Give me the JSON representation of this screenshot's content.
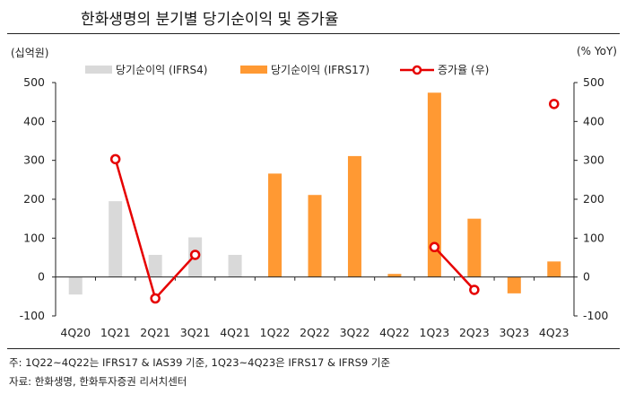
{
  "title": "한화생명의 분기별 당기순이익 및 증가율",
  "footnote": "주: 1Q22~4Q22는 IFRS17 & IAS39 기준, 1Q23~4Q23은 IFRS17 & IFRS9 기준",
  "source": "자료: 한화생명, 한화투자증권 리서치센터",
  "chart_data": {
    "type": "bar+line",
    "ylabel_left": "(십억원)",
    "ylabel_right": "(% YoY)",
    "ylim_left": [
      -100,
      500
    ],
    "ylim_right": [
      -100,
      500
    ],
    "yticks": [
      -100,
      0,
      100,
      200,
      300,
      400,
      500
    ],
    "legend_position": "top",
    "categories": [
      "4Q20",
      "1Q21",
      "2Q21",
      "3Q21",
      "4Q21",
      "1Q22",
      "2Q22",
      "3Q22",
      "4Q22",
      "1Q23",
      "2Q23",
      "3Q23",
      "4Q23"
    ],
    "series": [
      {
        "name": "당기순이익 (IFRS4)",
        "type": "bar",
        "axis": "left",
        "color": "#d9d9d9",
        "values": [
          -45,
          195,
          57,
          102,
          57,
          null,
          null,
          null,
          null,
          null,
          null,
          null,
          null
        ]
      },
      {
        "name": "당기순이익 (IFRS17)",
        "type": "bar",
        "axis": "left",
        "color": "#ff9933",
        "values": [
          null,
          null,
          null,
          null,
          null,
          266,
          211,
          311,
          8,
          474,
          150,
          -42,
          40
        ]
      },
      {
        "name": "증가율 (우)",
        "type": "line",
        "axis": "right",
        "color": "#e60000",
        "values": [
          null,
          303,
          -55,
          57,
          null,
          null,
          null,
          null,
          null,
          77,
          -33,
          null,
          445
        ]
      }
    ]
  }
}
